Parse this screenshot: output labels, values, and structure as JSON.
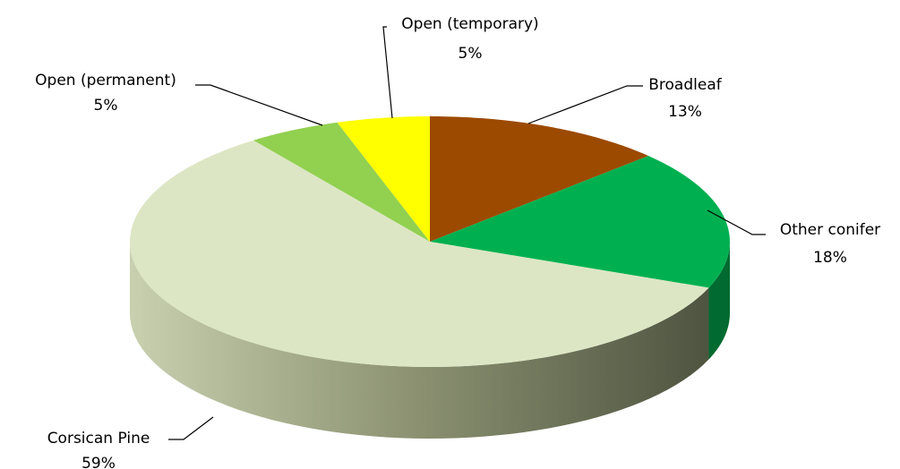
{
  "chart_data": {
    "type": "pie3d",
    "categories": [
      "Broadleaf",
      "Other conifer",
      "Corsican Pine",
      "Open (permanent)",
      "Open (temporary)"
    ],
    "values": [
      13,
      18,
      59,
      5,
      5
    ],
    "value_labels": [
      "13%",
      "18%",
      "59%",
      "5%",
      "5%"
    ],
    "colors": [
      "#9c4a00",
      "#00b050",
      "#dce6c4",
      "#92d050",
      "#ffff00"
    ]
  }
}
